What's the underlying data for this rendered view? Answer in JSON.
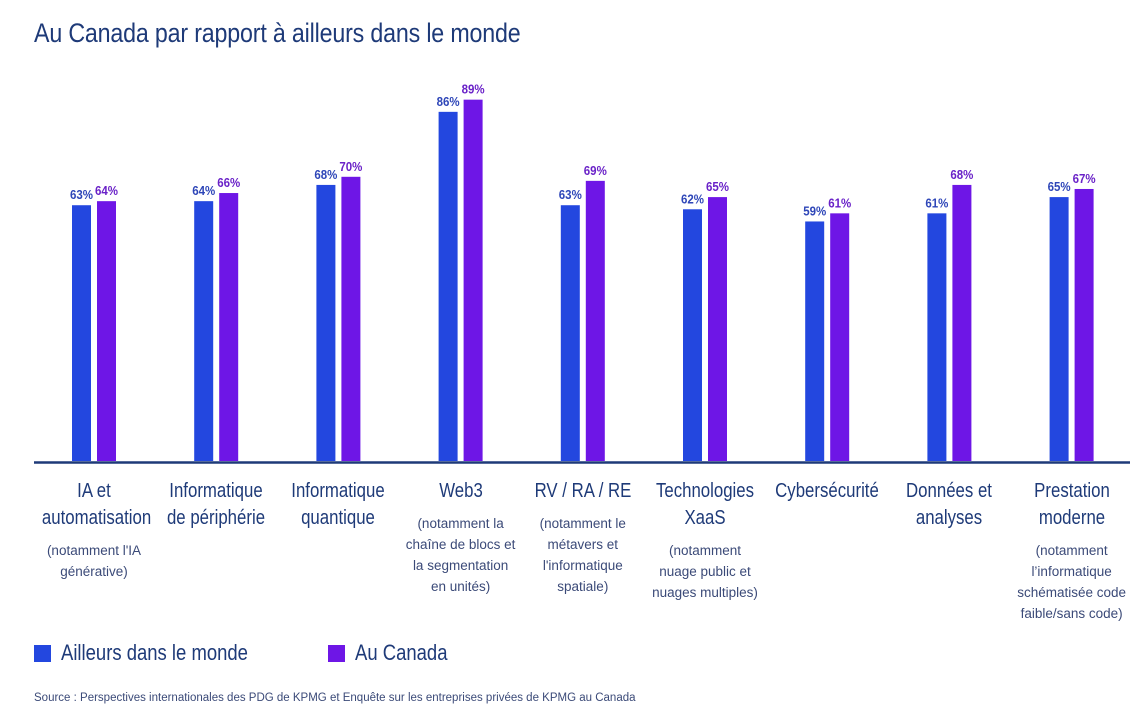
{
  "chart_data": {
    "type": "bar",
    "title": "Au Canada par rapport à ailleurs dans le monde",
    "xlabel": "",
    "ylabel": "",
    "ylim": [
      0,
      100
    ],
    "grid": false,
    "legend_position": "bottom-left",
    "categories": [
      {
        "label": "IA et automatisation",
        "lines": [
          "IA et",
          "automatisation"
        ],
        "note": [
          "(notamment l'IA",
          "générative)"
        ]
      },
      {
        "label": "Informatique de périphérie",
        "lines": [
          "Informatique",
          "de périphérie"
        ],
        "note": []
      },
      {
        "label": "Informatique quantique",
        "lines": [
          "Informatique",
          "quantique"
        ],
        "note": []
      },
      {
        "label": "Web3",
        "lines": [
          "Web3"
        ],
        "note": [
          "(notamment la",
          "chaîne de blocs et",
          "la segmentation",
          "en unités)"
        ]
      },
      {
        "label": "RV / RA / RE",
        "lines": [
          "RV / RA / RE"
        ],
        "note": [
          "(notamment le",
          "métavers et",
          "l'informatique",
          "spatiale)"
        ]
      },
      {
        "label": "Technologies XaaS",
        "lines": [
          "Technologies",
          "XaaS"
        ],
        "note": [
          "(notamment",
          "nuage public et",
          "nuages multiples)"
        ]
      },
      {
        "label": "Cybersécurité",
        "lines": [
          "Cybersécurité"
        ],
        "note": []
      },
      {
        "label": "Données et analyses",
        "lines": [
          "Données et",
          "analyses"
        ],
        "note": []
      },
      {
        "label": "Prestation moderne",
        "lines": [
          "Prestation",
          "moderne"
        ],
        "note": [
          "(notamment",
          "l’informatique",
          "schématisée code",
          "faible/sans code)"
        ]
      }
    ],
    "series": [
      {
        "name": "Ailleurs dans le monde",
        "color": "#2347df",
        "label_color": "#2e46b8",
        "values": [
          63,
          64,
          68,
          86,
          63,
          62,
          59,
          61,
          65
        ],
        "labels": [
          "63%",
          "64%",
          "68%",
          "86%",
          "63%",
          "62%",
          "59%",
          "61%",
          "65%"
        ]
      },
      {
        "name": "Au Canada",
        "color": "#6e16e6",
        "label_color": "#6a22c8",
        "values": [
          64,
          66,
          70,
          89,
          69,
          65,
          61,
          68,
          67
        ],
        "labels": [
          "64%",
          "66%",
          "70%",
          "89%",
          "69%",
          "65%",
          "61%",
          "68%",
          "67%"
        ]
      }
    ]
  },
  "source": "Source : Perspectives internationales des PDG de KPMG et Enquête sur les entreprises privées de KPMG au Canada",
  "colors": {
    "axis": "#1e3a78",
    "title": "#1e3a78"
  }
}
